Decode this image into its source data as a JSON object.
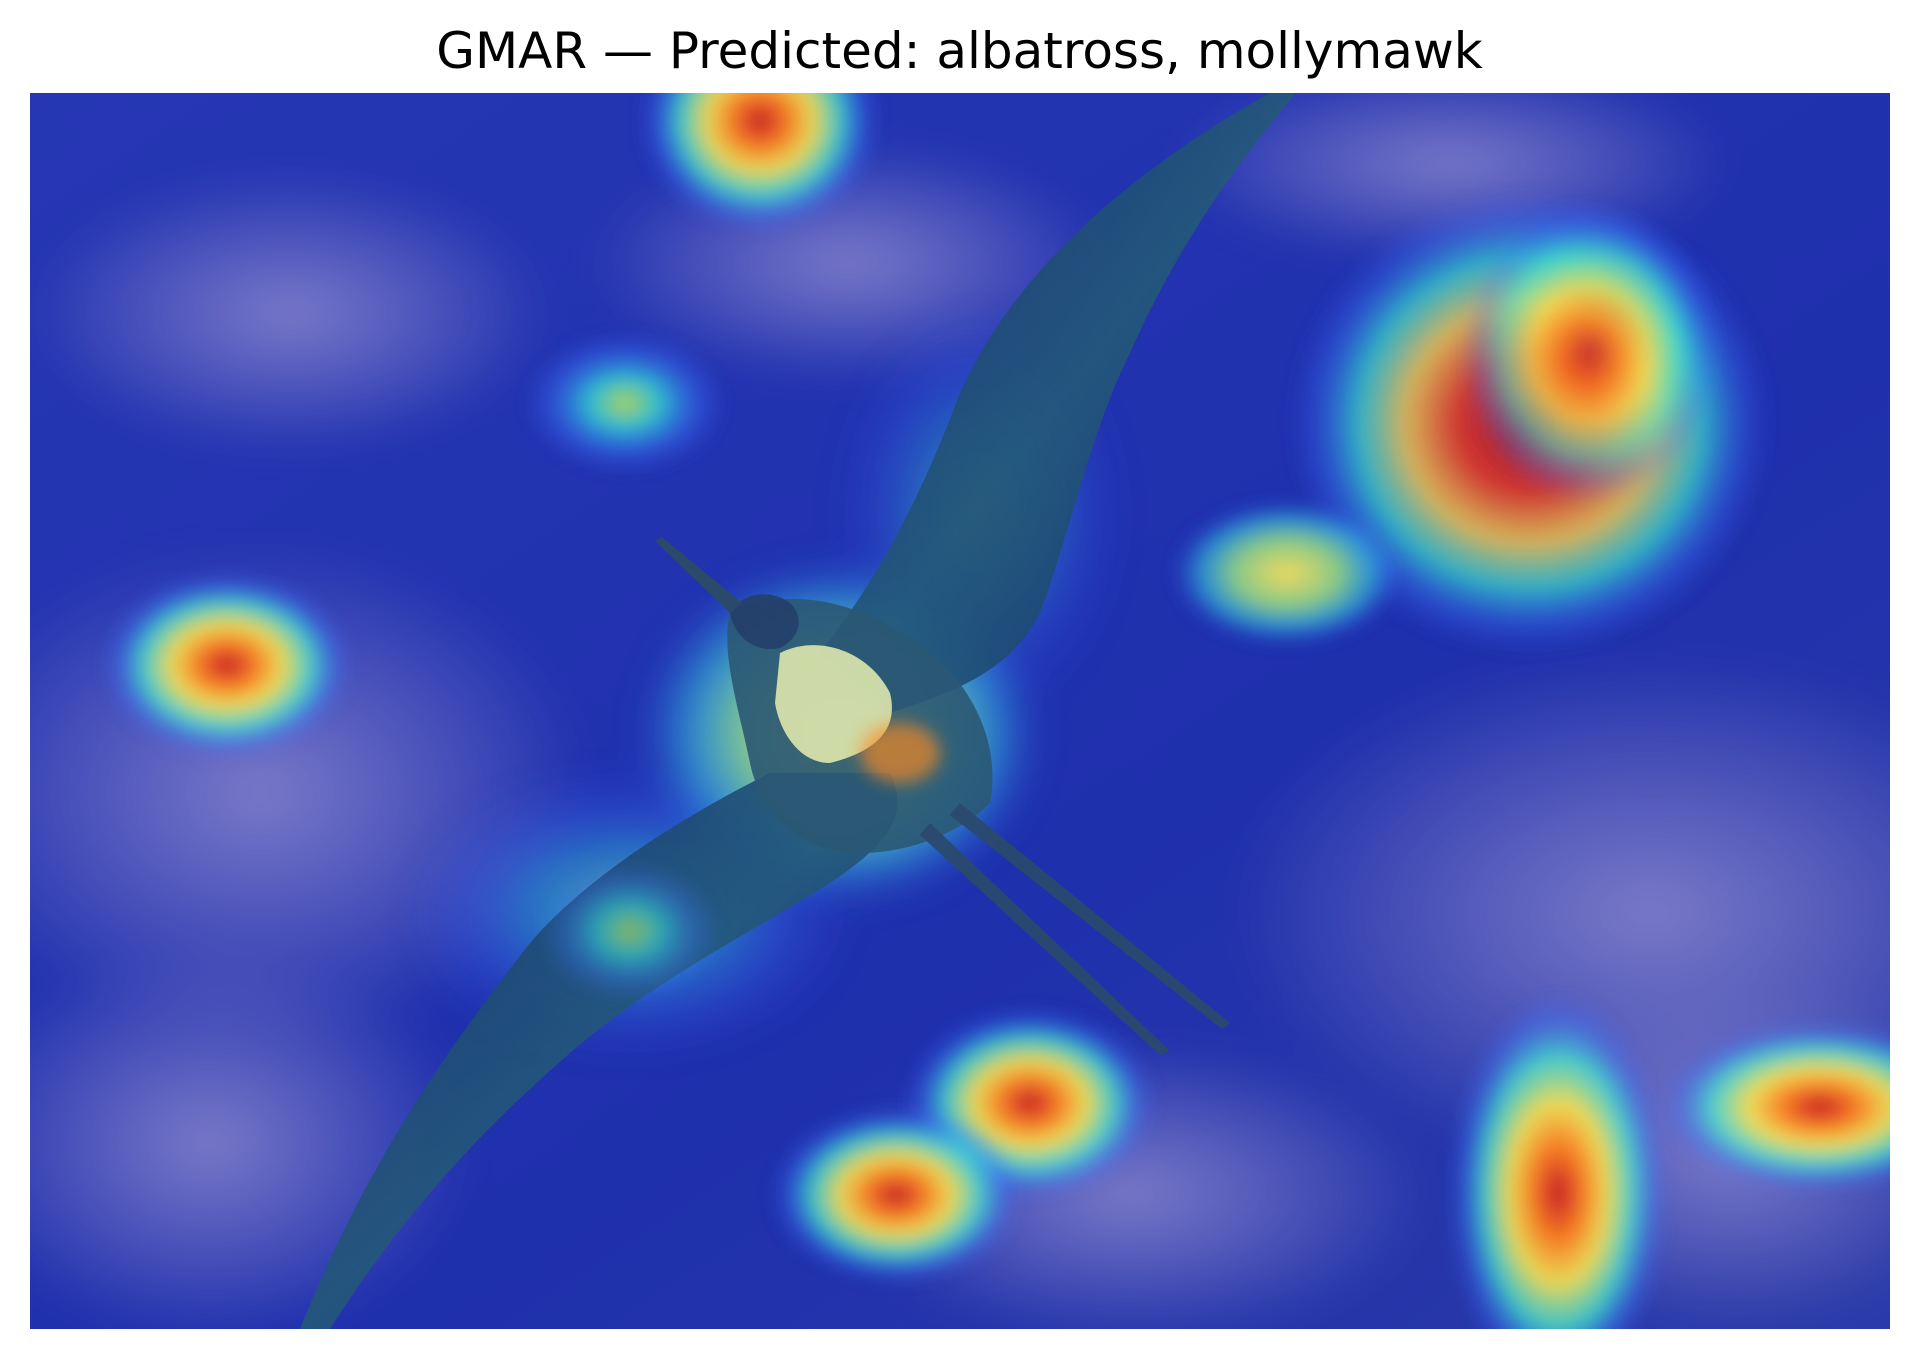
{
  "figure": {
    "title": "GMAR — Predicted: albatross, mollymawk",
    "subject_icon": "bird-silhouette",
    "colors": {
      "sky_deep": "#1a2ea8",
      "sky_mid": "#2a3fc0",
      "cloud": "#7a78c4",
      "bird_body": "#1f3f6e",
      "heat_cool": "#00ffff",
      "heat_mid": "#ffff00",
      "heat_hot": "#b22222"
    }
  }
}
